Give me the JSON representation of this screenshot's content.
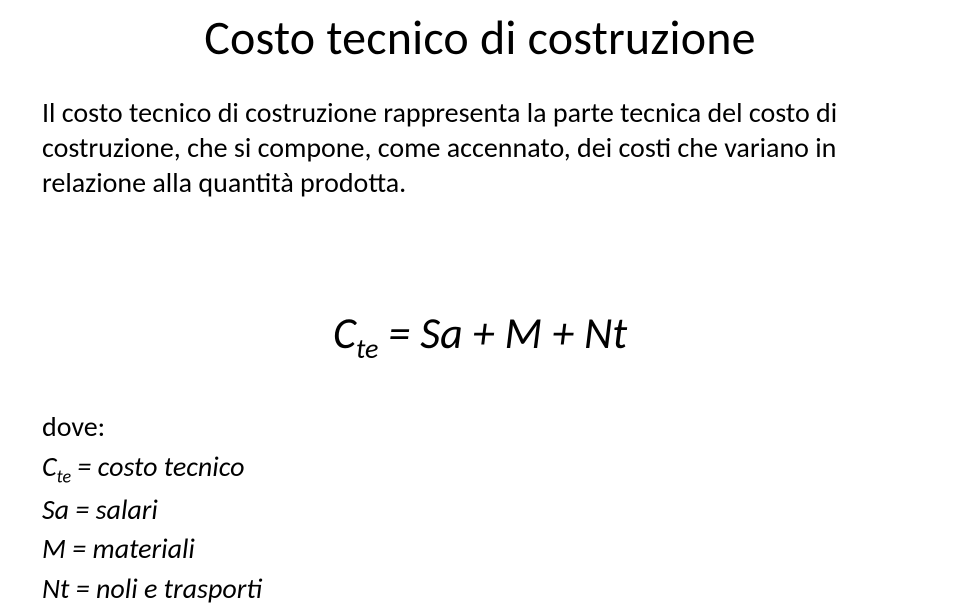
{
  "title": "Costo tecnico di costruzione",
  "paragraph": "Il costo tecnico di costruzione rappresenta la parte tecnica del costo di costruzione, che si compone, come accennato, dei costi che variano in relazione alla quantità prodotta.",
  "formula": {
    "lhs_base": "C",
    "lhs_sub": "te",
    "rhs": " = Sa + M + Nt"
  },
  "defs": {
    "dove": "dove:",
    "line1_base": "C",
    "line1_sub": "te",
    "line1_rest": " = costo tecnico",
    "line2": "Sa = salari",
    "line3": "M = materiali",
    "line4": "Nt = noli e trasporti"
  },
  "style": {
    "bg": "#ffffff",
    "text_color": "#000000",
    "title_fontsize": 48,
    "body_fontsize": 28,
    "formula_fontsize": 44
  }
}
